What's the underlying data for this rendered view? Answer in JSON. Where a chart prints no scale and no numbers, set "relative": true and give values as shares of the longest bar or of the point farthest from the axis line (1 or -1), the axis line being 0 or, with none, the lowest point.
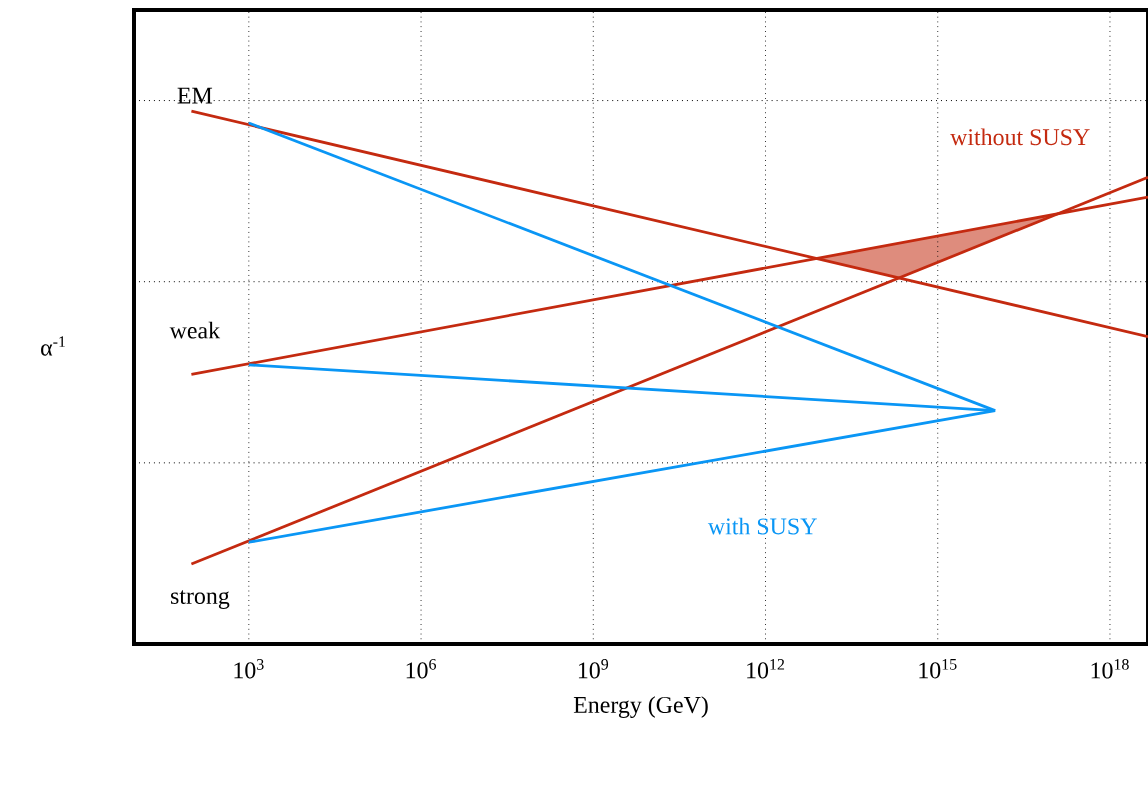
{
  "chart_data": {
    "type": "line",
    "relative": true,
    "xlabel": "Energy (GeV)",
    "ylabel": "α$^{-1}$",
    "log": "x",
    "grid": "x",
    "xlim": [
      10,
      4.6e+18
    ],
    "xticks": [
      {
        "value": 1000,
        "label": "10$^{3}$"
      },
      {
        "value": 1000000,
        "label": "10$^{6}$"
      },
      {
        "value": 1000000000,
        "label": "10$^{9}$"
      },
      {
        "value": 1000000000000,
        "label": "10$^{12}$"
      },
      {
        "value": 1000000000000000,
        "label": "10$^{15}$"
      },
      {
        "value": 1000000000000000000,
        "label": "10$^{18}$"
      }
    ],
    "series": [
      {
        "name": "without SUSY",
        "color": "#c42a10",
        "x": [
          100,
          4.6e+18
        ],
        "values": [
          1.0,
          0.577
        ]
      },
      {
        "color": "#c42a10",
        "x": [
          100,
          4.6e+18
        ],
        "values": [
          0.506,
          0.839
        ]
      },
      {
        "color": "#c42a10",
        "x": [
          100,
          4.6e+18
        ],
        "values": [
          0.15,
          0.876
        ]
      },
      {
        "color": "#0a96f5",
        "x": [
          1000,
          1e+16
        ],
        "values": [
          0.978,
          0.438
        ]
      },
      {
        "name": "with SUSY",
        "color": "#0a96f5",
        "x": [
          1000,
          1e+16
        ],
        "values": [
          0.524,
          0.438
        ]
      },
      {
        "color": "#0a96f5",
        "x": [
          1000,
          1e+16
        ],
        "values": [
          0.191,
          0.438
        ]
      }
    ],
    "ref_lines": [
      {
        "axis": "y",
        "value": 1.02,
        "line_style": "dotted"
      },
      {
        "axis": "y",
        "value": 0.68,
        "line_style": "dotted"
      },
      {
        "axis": "y",
        "value": 0.34,
        "line_style": "dotted"
      }
    ],
    "annotations": [
      "EM",
      "weak",
      "strong"
    ]
  }
}
